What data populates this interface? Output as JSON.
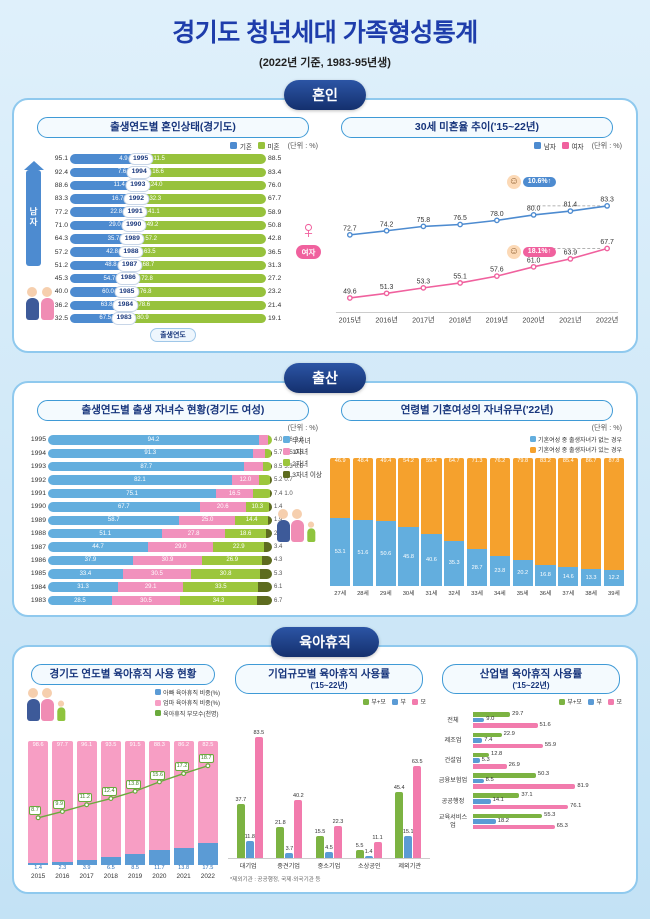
{
  "page": {
    "title": "경기도 청년세대 가족형성통계",
    "subtitle": "(2022년 기준, 1983-95년생)"
  },
  "sections": {
    "marriage": "혼인",
    "birth": "출산",
    "leave": "육아휴직"
  },
  "chart_data": [
    {
      "id": "marriage_status",
      "type": "bar",
      "title": "출생연도별 혼인상태(경기도)",
      "unit": "(단위 : %)",
      "axis_label": "출생연도",
      "male_label": "남자",
      "female_label": "여자",
      "legend": [
        {
          "label": "기혼",
          "color": "#4d8bd0"
        },
        {
          "label": "미혼",
          "color": "#97c23c"
        }
      ],
      "rows": [
        {
          "year": "1995",
          "male_single": 95.1,
          "male_married": 4.9,
          "female_married": 11.5,
          "female_single": 88.5
        },
        {
          "year": "1994",
          "male_single": 92.4,
          "male_married": 7.6,
          "female_married": 16.6,
          "female_single": 83.4
        },
        {
          "year": "1993",
          "male_single": 88.6,
          "male_married": 11.4,
          "female_married": 24.0,
          "female_single": 76.0
        },
        {
          "year": "1992",
          "male_single": 83.3,
          "male_married": 16.7,
          "female_married": 32.3,
          "female_single": 67.7
        },
        {
          "year": "1991",
          "male_single": 77.2,
          "male_married": 22.8,
          "female_married": 41.1,
          "female_single": 58.9
        },
        {
          "year": "1990",
          "male_single": 71.0,
          "male_married": 29.0,
          "female_married": 49.2,
          "female_single": 50.8
        },
        {
          "year": "1989",
          "male_single": 64.3,
          "male_married": 35.7,
          "female_married": 57.2,
          "female_single": 42.8
        },
        {
          "year": "1988",
          "male_single": 57.2,
          "male_married": 42.8,
          "female_married": 63.5,
          "female_single": 36.5
        },
        {
          "year": "1987",
          "male_single": 51.2,
          "male_married": 48.8,
          "female_married": 68.7,
          "female_single": 31.3
        },
        {
          "year": "1986",
          "male_single": 45.3,
          "male_married": 54.7,
          "female_married": 72.8,
          "female_single": 27.2
        },
        {
          "year": "1985",
          "male_single": 40.0,
          "male_married": 60.0,
          "female_married": 76.8,
          "female_single": 23.2
        },
        {
          "year": "1984",
          "male_single": 36.2,
          "male_married": 63.8,
          "female_married": 78.6,
          "female_single": 21.4
        },
        {
          "year": "1983",
          "male_single": 32.5,
          "male_married": 67.5,
          "female_married": 80.9,
          "female_single": 19.1
        }
      ]
    },
    {
      "id": "single_rate_trend",
      "type": "line",
      "title": "30세 미혼율 추이('15~22년)",
      "unit": "(단위 : %)",
      "legend": [
        {
          "label": "남자",
          "color": "#4d8bd0"
        },
        {
          "label": "여자",
          "color": "#f0619e"
        }
      ],
      "years": [
        "2015년",
        "2016년",
        "2017년",
        "2018년",
        "2019년",
        "2020년",
        "2021년",
        "2022년"
      ],
      "male": [
        72.7,
        74.2,
        75.8,
        76.5,
        78.0,
        80.0,
        81.4,
        83.3
      ],
      "female": [
        49.6,
        51.3,
        53.3,
        55.1,
        57.6,
        61.0,
        63.9,
        67.7
      ],
      "male_badge": "10.6%↑",
      "female_badge": "18.1%↑"
    },
    {
      "id": "children_count",
      "type": "bar",
      "title": "출생연도별 출생 자녀수 현황(경기도 여성)",
      "unit": "(단위 : %)",
      "legend": [
        {
          "label": "무자녀",
          "color": "#63aede"
        },
        {
          "label": "1자녀",
          "color": "#f191bd"
        },
        {
          "label": "2자녀",
          "color": "#9cc63c"
        },
        {
          "label": "3자녀 이상",
          "color": "#5d6b1f"
        }
      ],
      "rows": [
        {
          "year": "1995",
          "values": [
            94.2,
            4.0,
            1.6,
            0.2
          ]
        },
        {
          "year": "1994",
          "values": [
            91.3,
            5.7,
            2.5,
            0.5
          ]
        },
        {
          "year": "1993",
          "values": [
            87.7,
            8.5,
            3.3,
            0.5
          ]
        },
        {
          "year": "1992",
          "values": [
            82.1,
            12.0,
            5.2,
            0.7
          ]
        },
        {
          "year": "1991",
          "values": [
            75.1,
            16.5,
            7.4,
            1.0
          ]
        },
        {
          "year": "1990",
          "values": [
            67.7,
            20.6,
            10.3,
            1.4
          ]
        },
        {
          "year": "1989",
          "values": [
            58.7,
            25.0,
            14.4,
            1.9
          ]
        },
        {
          "year": "1988",
          "values": [
            51.1,
            27.8,
            18.6,
            2.5
          ]
        },
        {
          "year": "1987",
          "values": [
            44.7,
            29.0,
            22.9,
            3.4
          ]
        },
        {
          "year": "1986",
          "values": [
            37.9,
            30.9,
            26.9,
            4.3
          ]
        },
        {
          "year": "1985",
          "values": [
            33.4,
            30.5,
            30.8,
            5.3
          ]
        },
        {
          "year": "1984",
          "values": [
            31.3,
            29.1,
            33.5,
            6.1
          ]
        },
        {
          "year": "1983",
          "values": [
            28.5,
            30.5,
            34.3,
            6.7
          ]
        }
      ]
    },
    {
      "id": "children_by_age",
      "type": "bar",
      "title": "연령별 기혼여성의 자녀유무('22년)",
      "unit": "(단위 : %)",
      "legend": [
        {
          "label": "기혼여성 중 출생자녀가 없는 경우",
          "color": "#63aede"
        },
        {
          "label": "기혼여성 중 출생자녀가 있는 경우",
          "color": "#f5a12d"
        }
      ],
      "ages": [
        "27세",
        "28세",
        "29세",
        "30세",
        "31세",
        "32세",
        "33세",
        "34세",
        "35세",
        "36세",
        "37세",
        "38세",
        "39세"
      ],
      "no_child": [
        53.1,
        51.6,
        50.6,
        45.8,
        40.6,
        35.3,
        28.7,
        23.8,
        20.2,
        16.8,
        14.6,
        13.3,
        12.2
      ],
      "has_child": [
        46.9,
        48.4,
        49.4,
        54.2,
        59.4,
        64.7,
        71.3,
        76.2,
        79.8,
        83.2,
        85.4,
        86.7,
        87.8
      ]
    },
    {
      "id": "leave_by_year",
      "type": "bar",
      "title": "경기도 연도별 육아휴직 사용 현황",
      "legend": [
        {
          "label": "아빠 육아휴직 비중(%)",
          "color": "#5b9bd5"
        },
        {
          "label": "엄마 육아휴직 비중(%)",
          "color": "#f79ec4"
        },
        {
          "label": "육아휴직 부모수(천명)",
          "color": "#6aaa3c"
        }
      ],
      "years": [
        "2015",
        "2016",
        "2017",
        "2018",
        "2019",
        "2020",
        "2021",
        "2022"
      ],
      "dad": [
        1.4,
        2.3,
        3.9,
        6.5,
        8.5,
        11.7,
        13.8,
        17.5
      ],
      "mom": [
        98.6,
        97.7,
        96.1,
        93.5,
        91.5,
        88.3,
        86.2,
        82.5
      ],
      "parents_k": [
        8.7,
        9.9,
        11.2,
        12.4,
        13.8,
        15.6,
        17.2,
        18.7
      ]
    },
    {
      "id": "leave_by_size",
      "type": "bar",
      "title": "기업규모별 육아휴직 사용률",
      "subtitle": "('15~22년)",
      "legend": [
        {
          "label": "부+모",
          "color": "#7cb342"
        },
        {
          "label": "부",
          "color": "#5b9bd5"
        },
        {
          "label": "모",
          "color": "#f27bad"
        }
      ],
      "categories": [
        "대기업",
        "중견기업",
        "중소기업",
        "소상공인",
        "제외기관"
      ],
      "both": [
        37.7,
        21.8,
        15.5,
        5.5,
        45.4
      ],
      "father": [
        11.8,
        3.7,
        4.5,
        1.4,
        15.1
      ],
      "mother": [
        83.5,
        40.2,
        22.3,
        11.1,
        63.5
      ],
      "footnote": "*제외기관 : 공공행정, 국제·외국기관 등"
    },
    {
      "id": "leave_by_industry",
      "type": "bar",
      "title": "산업별 육아휴직 사용률",
      "subtitle": "('15~22년)",
      "legend": [
        {
          "label": "부+모",
          "color": "#7cb342"
        },
        {
          "label": "부",
          "color": "#5b9bd5"
        },
        {
          "label": "모",
          "color": "#f27bad"
        }
      ],
      "categories": [
        "전체",
        "제조업",
        "건설업",
        "금융보험업",
        "공공행정",
        "교육서비스업"
      ],
      "both": [
        29.7,
        22.9,
        12.8,
        50.3,
        37.1,
        55.3
      ],
      "father": [
        9.0,
        7.4,
        5.3,
        8.5,
        14.1,
        18.2
      ],
      "mother": [
        51.6,
        55.9,
        26.9,
        81.9,
        76.1,
        65.3
      ]
    }
  ]
}
